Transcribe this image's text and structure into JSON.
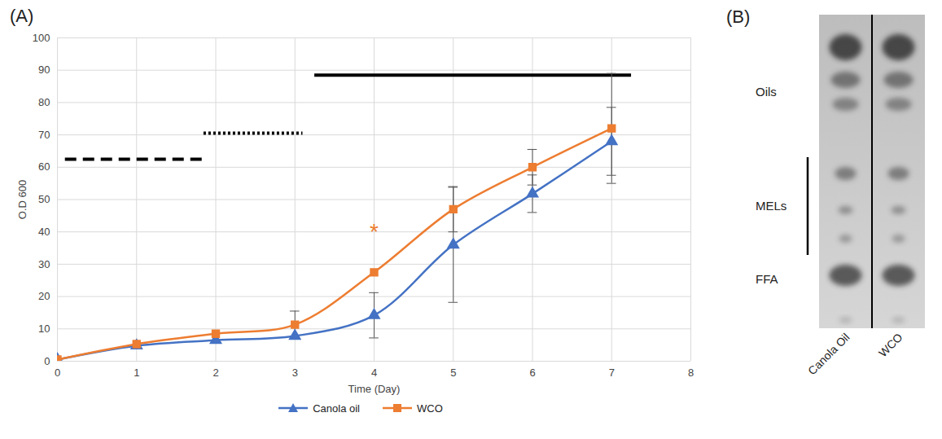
{
  "chart_data": {
    "type": "line",
    "panel_label": "(A)",
    "x_label": "Time (Day)",
    "y_label": "O.D 600",
    "x": [
      0,
      1,
      2,
      3,
      4,
      5,
      6,
      7
    ],
    "series": [
      {
        "name": "Canola oil",
        "color": "#4472c4",
        "marker": "triangle",
        "values": [
          0.5,
          4.8,
          6.5,
          7.8,
          14.2,
          36,
          51.8,
          68
        ],
        "errors": [
          0,
          0,
          0,
          0,
          7,
          17.8,
          5.8,
          10.5
        ]
      },
      {
        "name": "WCO",
        "color": "#ed7d31",
        "marker": "square",
        "values": [
          0.5,
          5.3,
          8.5,
          11.3,
          27.5,
          47,
          60,
          72
        ],
        "errors": [
          0,
          0,
          0,
          4.2,
          0,
          7,
          5.5,
          17
        ]
      }
    ],
    "xlim": [
      0,
      8
    ],
    "xticks": [
      0,
      1,
      2,
      3,
      4,
      5,
      6,
      7,
      8
    ],
    "ylim": [
      0,
      100
    ],
    "yticks": [
      0,
      10,
      20,
      30,
      40,
      50,
      60,
      70,
      80,
      90,
      100
    ],
    "grid": true,
    "legend": "bottom",
    "annotations": [
      {
        "text": "*",
        "x": 4,
        "y": 40,
        "series": "WCO"
      }
    ],
    "phases": [
      {
        "x1": 0.1,
        "x2": 1.85,
        "y": 62.5,
        "line_style": "dashed"
      },
      {
        "x1": 1.85,
        "x2": 3.1,
        "y": 70.5,
        "line_style": "dotted"
      },
      {
        "x1": 3.25,
        "x2": 7.25,
        "y": 88.5,
        "line_style": "solid"
      }
    ]
  },
  "panel_b": {
    "panel_label": "(B)",
    "bands": [
      "Oils",
      "MELs",
      "FFA"
    ],
    "lanes": [
      "Canola Oil",
      "WCO"
    ]
  }
}
